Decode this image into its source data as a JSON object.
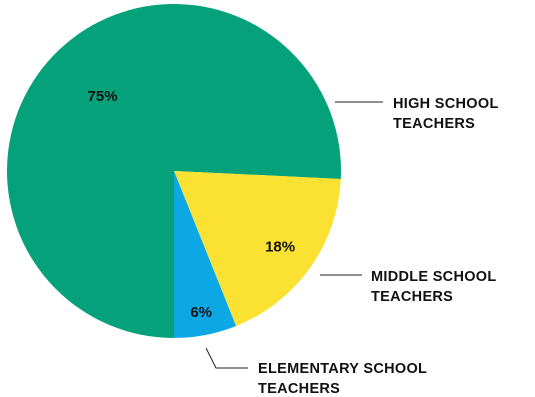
{
  "chart_data": {
    "type": "pie",
    "title": "",
    "slices": [
      {
        "label_lines": [
          "HIGH SCHOOL",
          "TEACHERS"
        ],
        "value": 75,
        "value_label": "75%",
        "color": "#05A17A"
      },
      {
        "label_lines": [
          "MIDDLE SCHOOL",
          "TEACHERS"
        ],
        "value": 18,
        "value_label": "18%",
        "color": "#FBE132"
      },
      {
        "label_lines": [
          "ELEMENTARY SCHOOL",
          "TEACHERS"
        ],
        "value": 6,
        "value_label": "6%",
        "color": "#0CA8E6"
      }
    ],
    "legend": "callout-lines-right"
  }
}
